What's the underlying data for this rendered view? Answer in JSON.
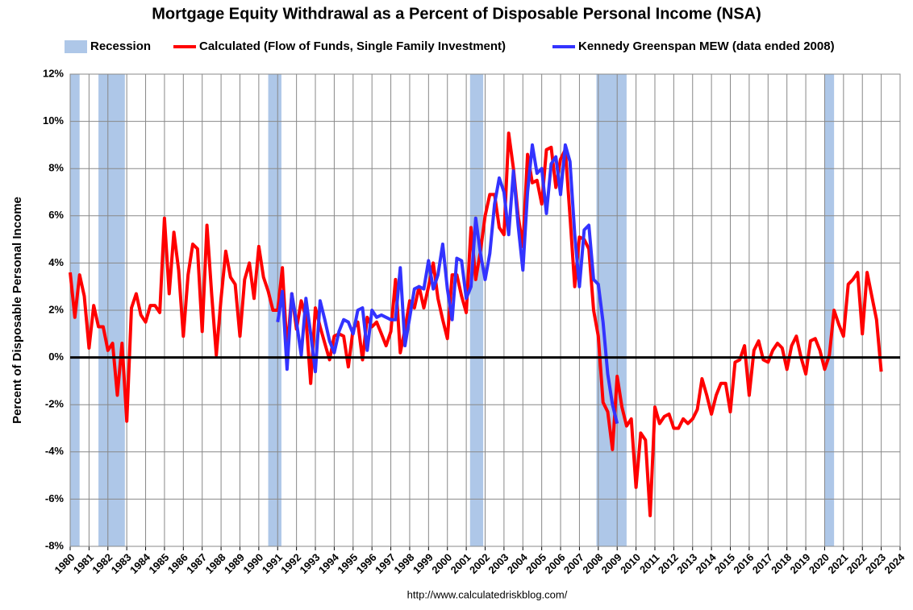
{
  "chart_data": {
    "type": "line",
    "title": "Mortgage Equity Withdrawal as a Percent of Disposable Personal Income (NSA)",
    "y_label": "Percent of Disposable Personal Income",
    "source": "http://www.calculatedriskblog.com/",
    "grid": true,
    "xlim": [
      1980,
      2024
    ],
    "xticks": [
      1980,
      1981,
      1982,
      1983,
      1984,
      1985,
      1986,
      1987,
      1988,
      1989,
      1990,
      1991,
      1992,
      1993,
      1994,
      1995,
      1996,
      1997,
      1998,
      1999,
      2000,
      2001,
      2002,
      2003,
      2004,
      2005,
      2006,
      2007,
      2008,
      2009,
      2010,
      2011,
      2012,
      2013,
      2014,
      2015,
      2016,
      2017,
      2018,
      2019,
      2020,
      2021,
      2022,
      2023,
      2024
    ],
    "ylim": [
      -8,
      12
    ],
    "yticks": [
      {
        "value": -8,
        "label": "-8%"
      },
      {
        "value": -6,
        "label": "-6%"
      },
      {
        "value": -4,
        "label": "-4%"
      },
      {
        "value": -2,
        "label": "-2%"
      },
      {
        "value": 0,
        "label": "0%"
      },
      {
        "value": 2,
        "label": "2%"
      },
      {
        "value": 4,
        "label": "4%"
      },
      {
        "value": 6,
        "label": "6%"
      },
      {
        "value": 8,
        "label": "8%"
      },
      {
        "value": 10,
        "label": "10%"
      },
      {
        "value": 12,
        "label": "12%"
      }
    ],
    "shaded_regions": {
      "name": "Recession",
      "color": "#aec7e8",
      "spans": [
        [
          1980,
          1980.5
        ],
        [
          1981.5,
          1982.9
        ],
        [
          1990.5,
          1991.2
        ],
        [
          2001.2,
          2001.9
        ],
        [
          2007.9,
          2009.5
        ],
        [
          2020,
          2020.5
        ]
      ]
    },
    "series": [
      {
        "name": "Calculated (Flow of Funds, Single Family Investment)",
        "color": "#ff0000",
        "x": [
          1980,
          1980.25,
          1980.5,
          1980.75,
          1981,
          1981.25,
          1981.5,
          1981.75,
          1982,
          1982.25,
          1982.5,
          1982.75,
          1983,
          1983.25,
          1983.5,
          1983.75,
          1984,
          1984.25,
          1984.5,
          1984.75,
          1985,
          1985.25,
          1985.5,
          1985.75,
          1986,
          1986.25,
          1986.5,
          1986.75,
          1987,
          1987.25,
          1987.5,
          1987.75,
          1988,
          1988.25,
          1988.5,
          1988.75,
          1989,
          1989.25,
          1989.5,
          1989.75,
          1990,
          1990.25,
          1990.5,
          1990.75,
          1991,
          1991.25,
          1991.5,
          1991.75,
          1992,
          1992.25,
          1992.5,
          1992.75,
          1993,
          1993.25,
          1993.5,
          1993.75,
          1994,
          1994.25,
          1994.5,
          1994.75,
          1995,
          1995.25,
          1995.5,
          1995.75,
          1996,
          1996.25,
          1996.5,
          1996.75,
          1997,
          1997.25,
          1997.5,
          1997.75,
          1998,
          1998.25,
          1998.5,
          1998.75,
          1999,
          1999.25,
          1999.5,
          1999.75,
          2000,
          2000.25,
          2000.5,
          2000.75,
          2001,
          2001.25,
          2001.5,
          2001.75,
          2002,
          2002.25,
          2002.5,
          2002.75,
          2003,
          2003.25,
          2003.5,
          2003.75,
          2004,
          2004.25,
          2004.5,
          2004.75,
          2005,
          2005.25,
          2005.5,
          2005.75,
          2006,
          2006.25,
          2006.5,
          2006.75,
          2007,
          2007.25,
          2007.5,
          2007.75,
          2008,
          2008.25,
          2008.5,
          2008.75,
          2009,
          2009.25,
          2009.5,
          2009.75,
          2010,
          2010.25,
          2010.5,
          2010.75,
          2011,
          2011.25,
          2011.5,
          2011.75,
          2012,
          2012.25,
          2012.5,
          2012.75,
          2013,
          2013.25,
          2013.5,
          2013.75,
          2014,
          2014.25,
          2014.5,
          2014.75,
          2015,
          2015.25,
          2015.5,
          2015.75,
          2016,
          2016.25,
          2016.5,
          2016.75,
          2017,
          2017.25,
          2017.5,
          2017.75,
          2018,
          2018.25,
          2018.5,
          2018.75,
          2019,
          2019.25,
          2019.5,
          2019.75,
          2020,
          2020.25,
          2020.5,
          2020.75,
          2021,
          2021.25,
          2021.5,
          2021.75,
          2022,
          2022.25,
          2022.5,
          2022.75,
          2023
        ],
        "values": [
          3.6,
          1.7,
          3.5,
          2.6,
          0.4,
          2.2,
          1.3,
          1.3,
          0.3,
          0.6,
          -1.6,
          0.6,
          -2.7,
          2.1,
          2.7,
          1.8,
          1.5,
          2.2,
          2.2,
          1.9,
          5.9,
          2.7,
          5.3,
          3.7,
          0.9,
          3.5,
          4.8,
          4.6,
          1.1,
          5.6,
          2.7,
          0.1,
          2.5,
          4.5,
          3.4,
          3.1,
          0.9,
          3.3,
          4.0,
          2.5,
          4.7,
          3.4,
          2.8,
          2.0,
          2.0,
          3.8,
          0.3,
          2.7,
          1.2,
          2.4,
          1.7,
          -1.1,
          2.1,
          1.3,
          0.6,
          -0.1,
          0.9,
          1.0,
          0.9,
          -0.4,
          1.2,
          1.5,
          -0.1,
          1.7,
          1.3,
          1.5,
          1.0,
          0.5,
          1.1,
          3.3,
          0.2,
          1.2,
          2.4,
          2.1,
          3.0,
          2.1,
          3.0,
          4.0,
          2.5,
          1.6,
          0.8,
          3.5,
          3.5,
          2.6,
          1.9,
          5.5,
          3.3,
          4.5,
          6.0,
          6.9,
          6.9,
          5.5,
          5.2,
          9.5,
          8.0,
          6.0,
          4.7,
          8.6,
          7.4,
          7.5,
          6.5,
          8.8,
          8.9,
          7.2,
          8.4,
          8.8,
          6.0,
          3.0,
          5.1,
          5.0,
          4.6,
          2.0,
          0.9,
          -1.9,
          -2.3,
          -3.9,
          -0.8,
          -2.1,
          -2.9,
          -2.6,
          -5.5,
          -3.2,
          -3.5,
          -6.7,
          -2.1,
          -2.8,
          -2.5,
          -2.4,
          -3.0,
          -3.0,
          -2.6,
          -2.8,
          -2.6,
          -2.2,
          -0.9,
          -1.6,
          -2.4,
          -1.6,
          -1.1,
          -1.1,
          -2.3,
          -0.2,
          -0.1,
          0.5,
          -1.6,
          0.3,
          0.7,
          -0.1,
          -0.2,
          0.3,
          0.6,
          0.4,
          -0.5,
          0.5,
          0.9,
          0.0,
          -0.7,
          0.7,
          0.8,
          0.3,
          -0.5,
          0.1,
          2.0,
          1.4,
          0.9,
          3.1,
          3.3,
          3.6,
          1.0,
          3.6,
          2.6,
          1.6,
          -0.6
        ]
      },
      {
        "name": "Kennedy Greenspan MEW (data ended 2008)",
        "color": "#3333ff",
        "x": [
          1991,
          1991.25,
          1991.5,
          1991.75,
          1992,
          1992.25,
          1992.5,
          1992.75,
          1993,
          1993.25,
          1993.5,
          1993.75,
          1994,
          1994.25,
          1994.5,
          1994.75,
          1995,
          1995.25,
          1995.5,
          1995.75,
          1996,
          1996.25,
          1996.5,
          1996.75,
          1997,
          1997.25,
          1997.5,
          1997.75,
          1998,
          1998.25,
          1998.5,
          1998.75,
          1999,
          1999.25,
          1999.5,
          1999.75,
          2000,
          2000.25,
          2000.5,
          2000.75,
          2001,
          2001.25,
          2001.5,
          2001.75,
          2002,
          2002.25,
          2002.5,
          2002.75,
          2003,
          2003.25,
          2003.5,
          2003.75,
          2004,
          2004.25,
          2004.5,
          2004.75,
          2005,
          2005.25,
          2005.5,
          2005.75,
          2006,
          2006.25,
          2006.5,
          2006.75,
          2007,
          2007.25,
          2007.5,
          2007.75,
          2008,
          2008.25,
          2008.5,
          2008.75,
          2009
        ],
        "values": [
          1.5,
          2.8,
          -0.5,
          2.7,
          1.5,
          0.1,
          2.5,
          1.0,
          -0.6,
          2.4,
          1.6,
          0.7,
          0.2,
          1.1,
          1.6,
          1.5,
          1.0,
          2.0,
          2.1,
          0.3,
          2.0,
          1.7,
          1.8,
          1.7,
          1.6,
          1.6,
          3.8,
          0.5,
          1.7,
          2.9,
          3.0,
          2.9,
          4.1,
          2.9,
          3.5,
          4.8,
          2.9,
          1.6,
          4.2,
          4.1,
          2.5,
          3.0,
          5.9,
          4.4,
          3.3,
          4.4,
          6.5,
          7.6,
          7.0,
          5.2,
          7.9,
          5.6,
          3.7,
          7.0,
          9.0,
          7.8,
          8.0,
          6.1,
          8.2,
          8.5,
          6.9,
          9.0,
          8.3,
          5.2,
          3.0,
          5.4,
          5.6,
          3.3,
          3.1,
          1.5,
          -0.7,
          -2.0,
          -2.8
        ]
      }
    ]
  }
}
